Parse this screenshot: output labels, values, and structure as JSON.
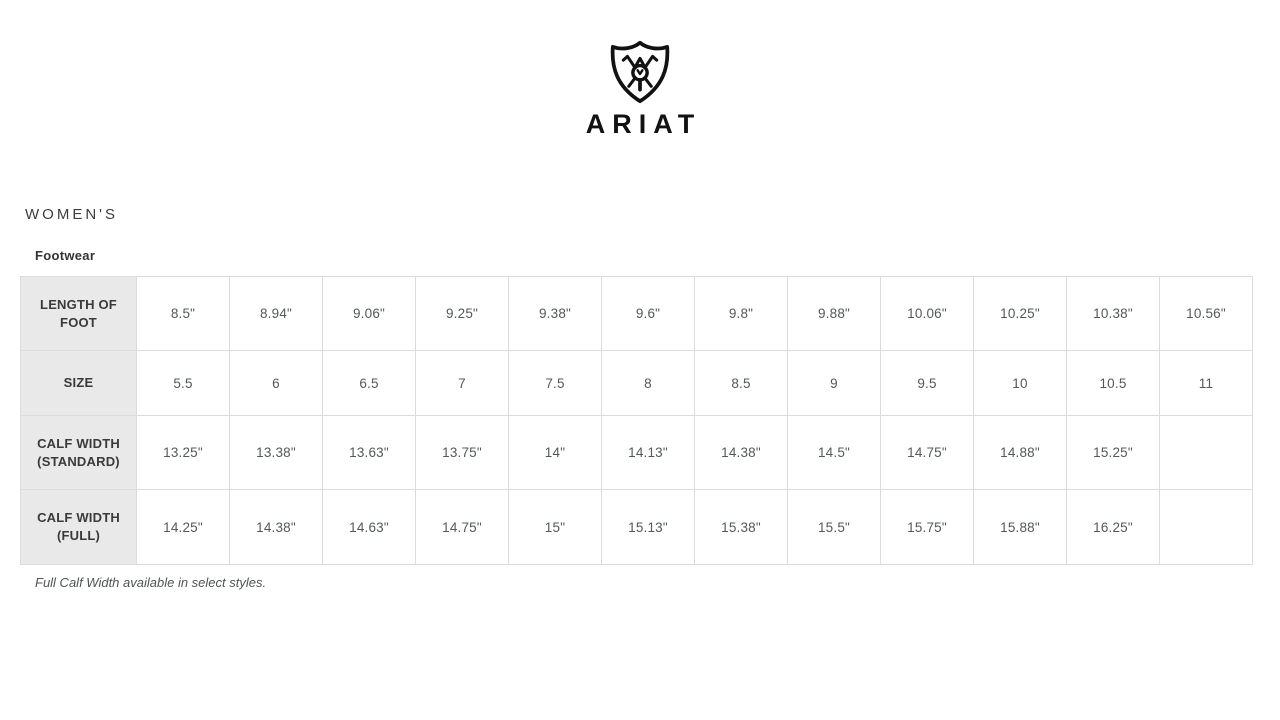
{
  "brand": {
    "wordmark": "ARIAT",
    "logo_icon": "ariat-shield-icon"
  },
  "page": {
    "section_title": "WOMEN'S",
    "chart_title": "Footwear",
    "footnote": "Full Calf Width available in select styles."
  },
  "chart_data": {
    "type": "table",
    "title": "Footwear",
    "rows": [
      {
        "label": "LENGTH OF FOOT",
        "values": [
          "8.5\"",
          "8.94\"",
          "9.06\"",
          "9.25\"",
          "9.38\"",
          "9.6\"",
          "9.8\"",
          "9.88\"",
          "10.06\"",
          "10.25\"",
          "10.38\"",
          "10.56\""
        ]
      },
      {
        "label": "SIZE",
        "values": [
          "5.5",
          "6",
          "6.5",
          "7",
          "7.5",
          "8",
          "8.5",
          "9",
          "9.5",
          "10",
          "10.5",
          "11"
        ]
      },
      {
        "label": "CALF WIDTH (STANDARD)",
        "values": [
          "13.25\"",
          "13.38\"",
          "13.63\"",
          "13.75\"",
          "14\"",
          "14.13\"",
          "14.38\"",
          "14.5\"",
          "14.75\"",
          "14.88\"",
          "15.25\"",
          ""
        ]
      },
      {
        "label": "CALF WIDTH (FULL)",
        "values": [
          "14.25\"",
          "14.38\"",
          "14.63\"",
          "14.75\"",
          "15\"",
          "15.13\"",
          "15.38\"",
          "15.5\"",
          "15.75\"",
          "15.88\"",
          "16.25\"",
          ""
        ]
      }
    ]
  },
  "colors": {
    "logo_black": "#121212",
    "heading_text": "#3d3d3d",
    "cell_text": "#54585a",
    "table_border": "#dcdcdc",
    "row_header_bg": "#e9e9e9"
  }
}
